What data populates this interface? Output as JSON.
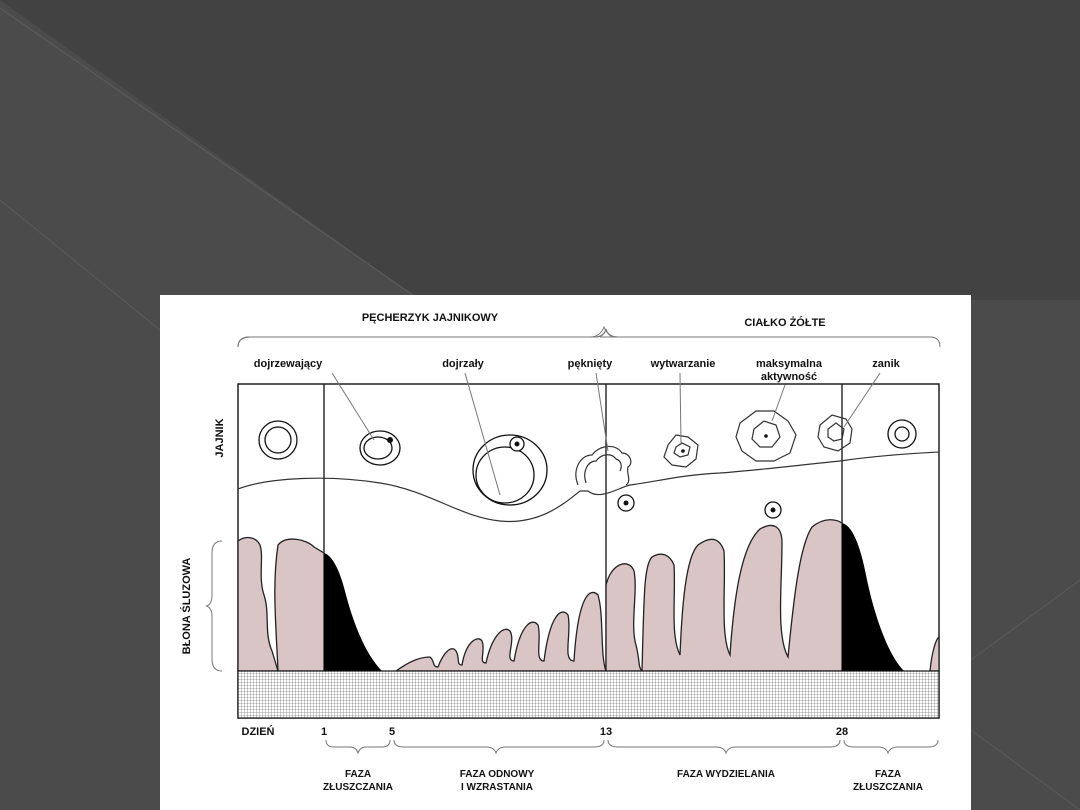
{
  "slide": {
    "background_color": "#4b4b4b",
    "shade_color": "#3e3e3e"
  },
  "diagram": {
    "top_headers": {
      "follicle": "PĘCHERZYK JAJNIKOWY",
      "corpus_luteum": "CIAŁKO ŻÓŁTE"
    },
    "stage_labels": {
      "maturing": "dojrzewający",
      "mature": "dojrzały",
      "ruptured": "pęknięty",
      "forming": "wytwarzanie",
      "max_activity_line1": "maksymalna",
      "max_activity_line2": "aktywność",
      "regression": "zanik"
    },
    "side_labels": {
      "ovary": "JAJNIK",
      "mucosa": "BŁONA ŚLUZOWA"
    },
    "day_axis": {
      "label": "DZIEŃ",
      "ticks": [
        "1",
        "5",
        "13",
        "28"
      ]
    },
    "phases": {
      "shedding_1_line1": "FAZA",
      "shedding_1_line2": "ZŁUSZCZANIA",
      "renewal_line1": "FAZA ODNOWY",
      "renewal_line2": "I WZRASTANIA",
      "secretion": "FAZA WYDZIELANIA",
      "shedding_2_line1": "FAZA",
      "shedding_2_line2": "ZŁUSZCZANIA"
    },
    "colors": {
      "mucosa": "#d9c4c6",
      "shedding": "#000000",
      "background": "#ffffff"
    }
  }
}
